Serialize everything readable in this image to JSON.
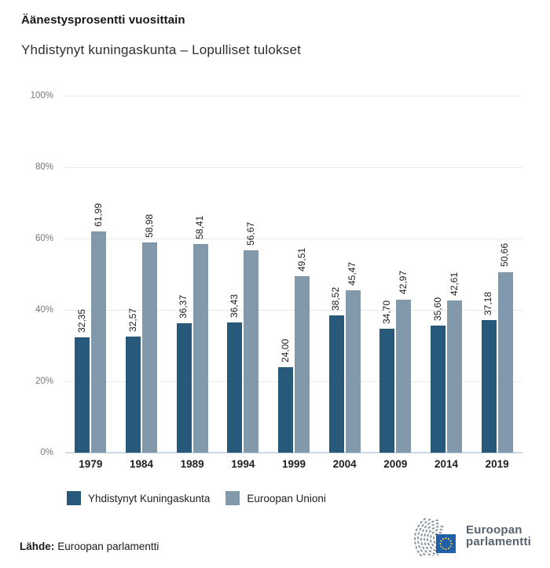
{
  "header": {
    "title": "Äänestysprosentti vuosittain",
    "subtitle": "Yhdistynyt kuningaskunta – Lopulliset tulokset"
  },
  "chart_data": {
    "type": "bar",
    "title": "Äänestysprosentti vuosittain",
    "subtitle": "Yhdistynyt kuningaskunta – Lopulliset tulokset",
    "categories": [
      "1979",
      "1984",
      "1989",
      "1994",
      "1999",
      "2004",
      "2009",
      "2014",
      "2019"
    ],
    "series": [
      {
        "name": "Yhdistynyt Kuningaskunta",
        "color": "#28587a",
        "values": [
          32.35,
          32.57,
          36.37,
          36.43,
          24.0,
          38.52,
          34.7,
          35.6,
          37.18
        ],
        "labels": [
          "32,35",
          "32,57",
          "36,37",
          "36,43",
          "24,00",
          "38,52",
          "34,70",
          "35,60",
          "37,18"
        ]
      },
      {
        "name": "Euroopan Unioni",
        "color": "#8299ab",
        "values": [
          61.99,
          58.98,
          58.41,
          56.67,
          49.51,
          45.47,
          42.97,
          42.61,
          50.66
        ],
        "labels": [
          "61,99",
          "58,98",
          "58,41",
          "56,67",
          "49,51",
          "45,47",
          "42,97",
          "42,61",
          "50,66"
        ]
      }
    ],
    "ylim": [
      0,
      100
    ],
    "yticks": [
      {
        "value": 0,
        "label": "0%"
      },
      {
        "value": 20,
        "label": "20%"
      },
      {
        "value": 40,
        "label": "40%"
      },
      {
        "value": 60,
        "label": "60%"
      },
      {
        "value": 80,
        "label": "80%"
      },
      {
        "value": 100,
        "label": "100%"
      }
    ],
    "grid": "horizontal",
    "legend_position": "bottom",
    "value_label_format": "comma-decimal"
  },
  "source": {
    "label": "Lähde:",
    "text": "Euroopan parlamentti"
  },
  "logo": {
    "line1": "Euroopan",
    "line2": "parlamentti",
    "flag_blue": "#2160a7",
    "star_yellow": "#f8d225",
    "text_color": "#566370"
  }
}
